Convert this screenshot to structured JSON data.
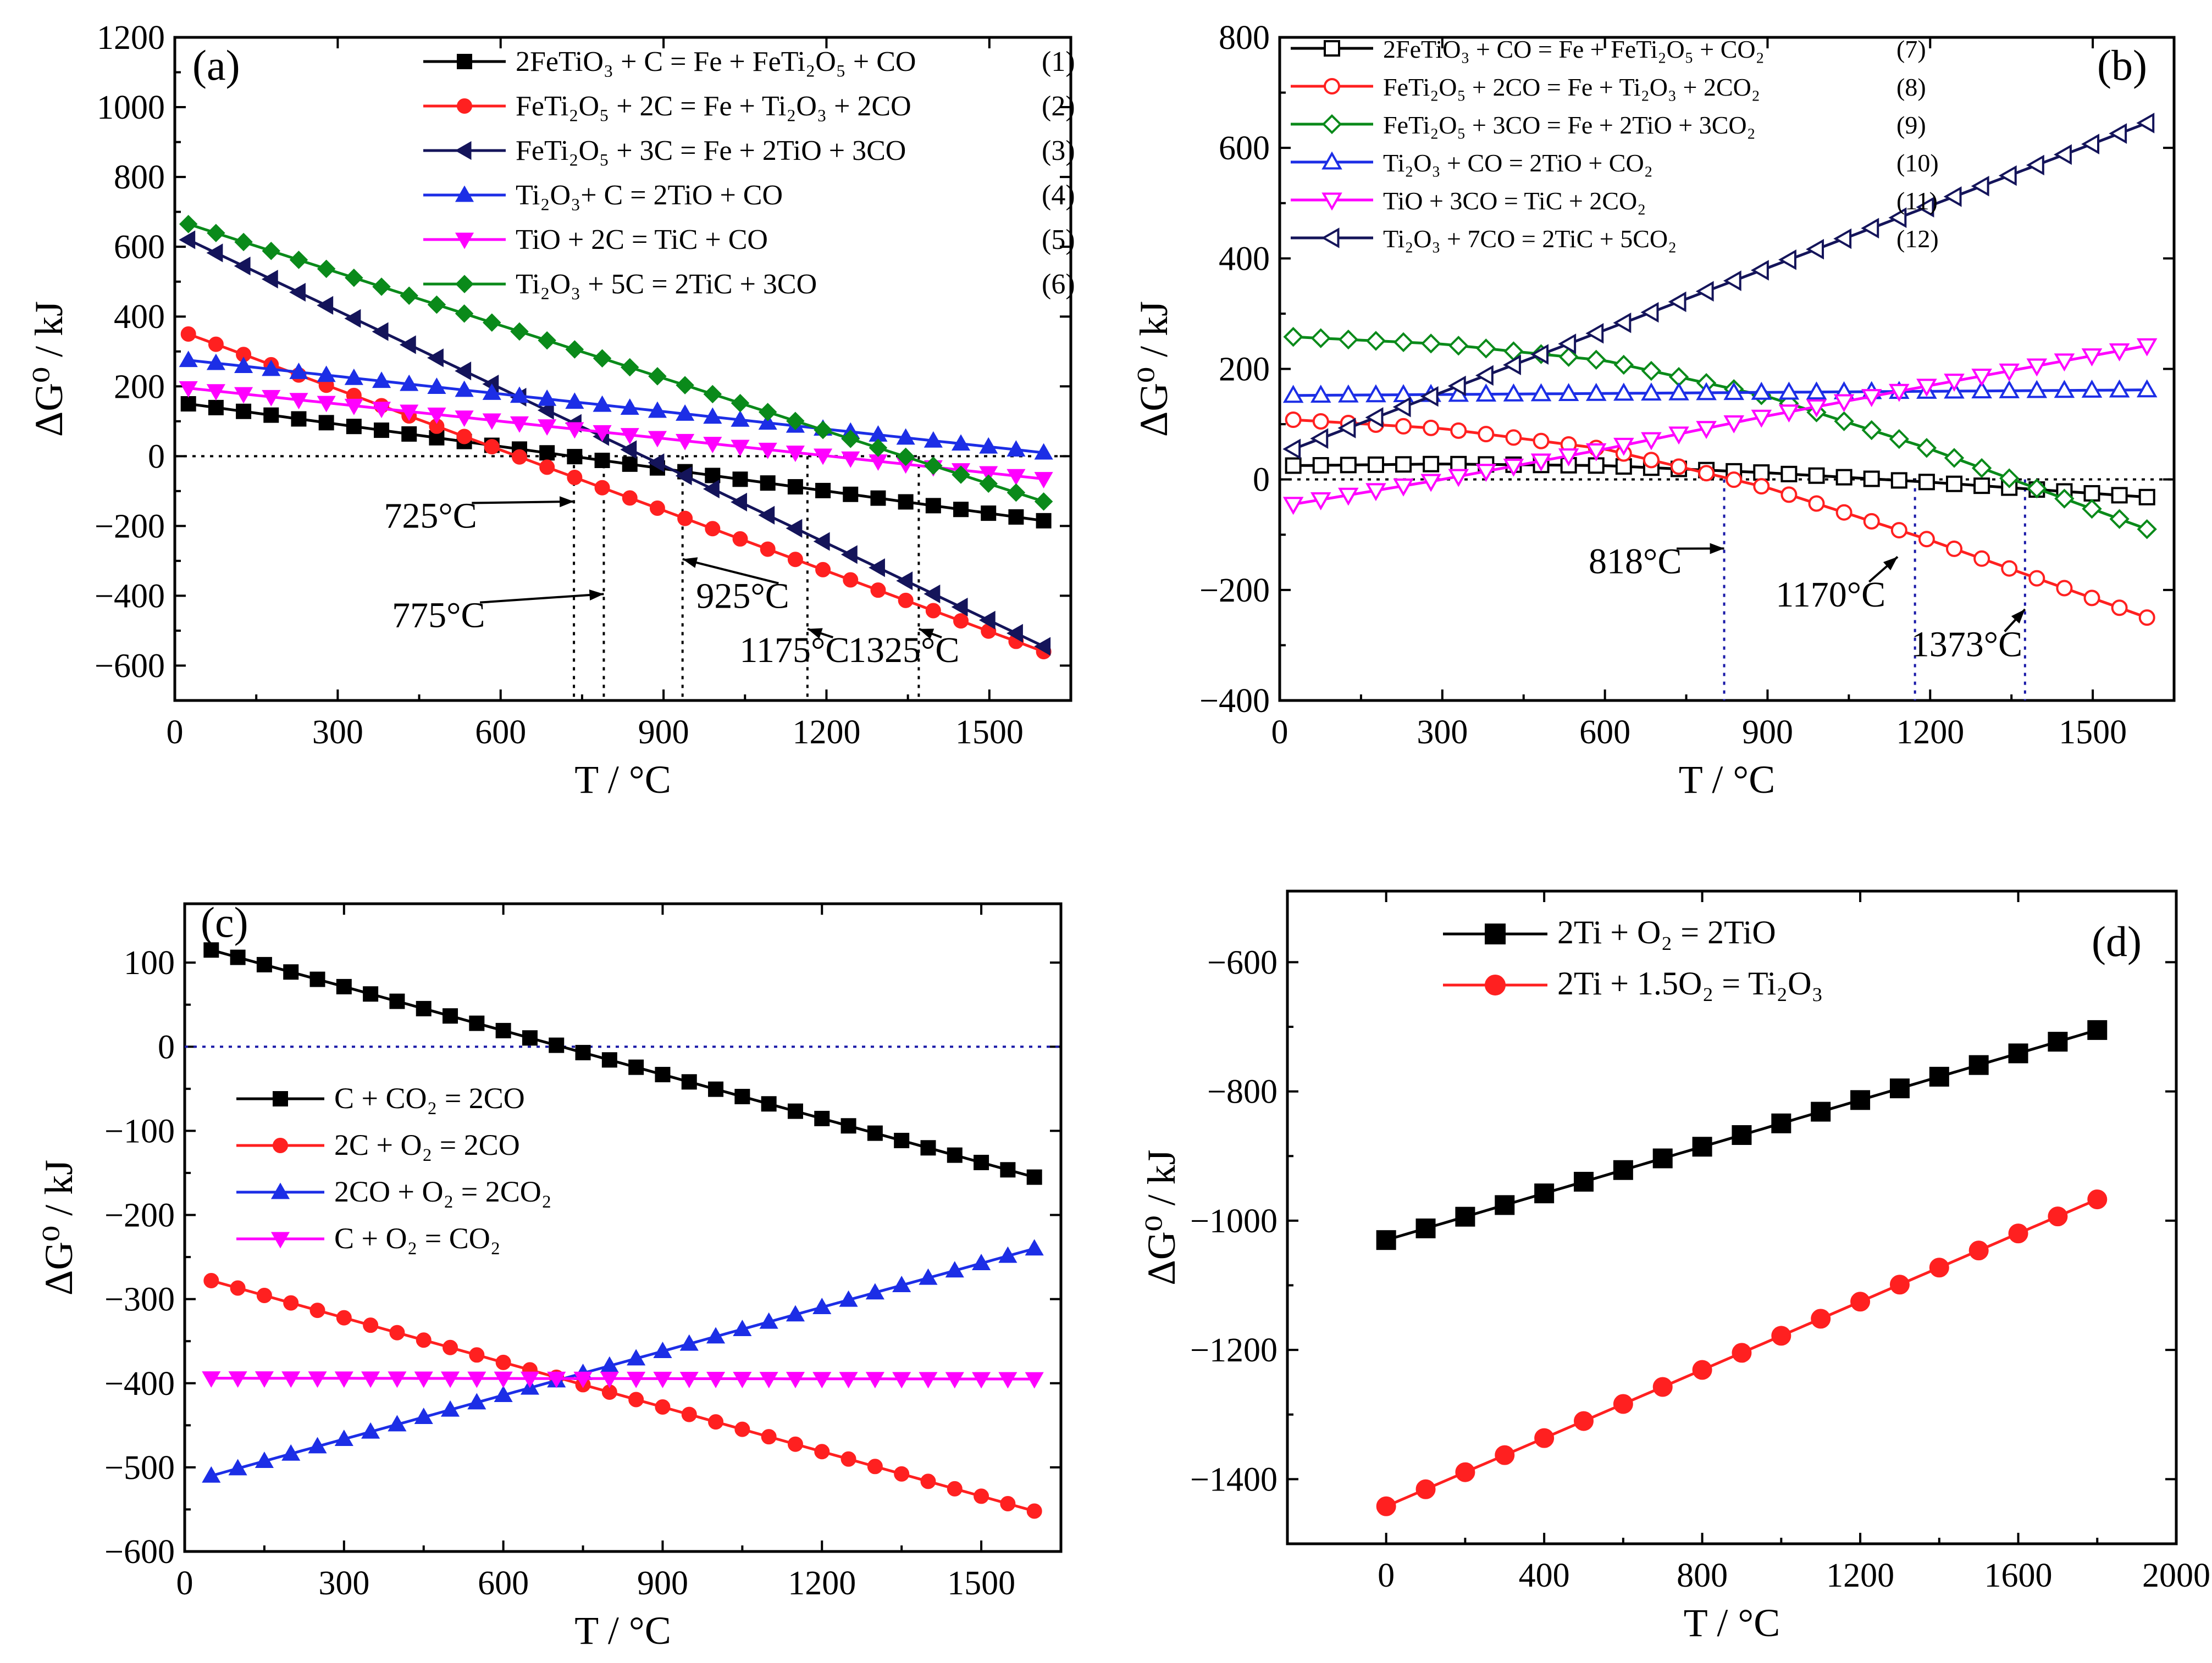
{
  "chart_data": [
    {
      "id": "a",
      "type": "line",
      "panel_label": "(a)",
      "xlabel": "T / °C",
      "ylabel": "ΔG⁰ / kJ",
      "xlim": [
        0,
        1650
      ],
      "ylim": [
        -700,
        1200
      ],
      "xticks": [
        0,
        300,
        600,
        900,
        1200,
        1500
      ],
      "yticks": [
        -600,
        -400,
        -200,
        0,
        200,
        400,
        600,
        800,
        1000,
        1200
      ],
      "zero_line": true,
      "legend_position": "top-right",
      "series": [
        {
          "name": "2FeTiO₃ + C = Fe + FeTi₂O₅ + CO",
          "number": "(1)",
          "color": "#000000",
          "marker": "square",
          "filled": true,
          "x": [
            25,
            1600
          ],
          "y": [
            150,
            -185
          ]
        },
        {
          "name": "FeTi₂O₅ + 2C = Fe + Ti₂O₃ + 2CO",
          "number": "(2)",
          "color": "#ff2020",
          "marker": "circle",
          "filled": true,
          "x": [
            25,
            1600
          ],
          "y": [
            350,
            -560
          ]
        },
        {
          "name": "FeTi₂O₅ + 3C = Fe + 2TiO + 3CO",
          "number": "(3)",
          "color": "#14145a",
          "marker": "triangle-left",
          "filled": true,
          "x": [
            25,
            1600
          ],
          "y": [
            620,
            -545
          ]
        },
        {
          "name": "Ti₂O₃+ C = 2TiO + CO",
          "number": "(4)",
          "color": "#1c2ee6",
          "marker": "triangle-up",
          "filled": true,
          "x": [
            25,
            1600
          ],
          "y": [
            275,
            10
          ]
        },
        {
          "name": "TiO + 2C = TiC + CO",
          "number": "(5)",
          "color": "#ff00ff",
          "marker": "triangle-down",
          "filled": true,
          "x": [
            25,
            1600
          ],
          "y": [
            195,
            -65
          ]
        },
        {
          "name": "Ti₂O₃ + 5C = 2TiC + 3CO",
          "number": "(6)",
          "color": "#0a8a1a",
          "marker": "diamond",
          "filled": true,
          "x": [
            25,
            1600
          ],
          "y": [
            665,
            -130
          ]
        }
      ],
      "vlines": [
        735,
        790,
        935,
        1165,
        1370
      ],
      "annotations": [
        {
          "text": "725°C",
          "x": 385,
          "y": -205,
          "ax": 735,
          "ay": -130
        },
        {
          "text": "775°C",
          "x": 400,
          "y": -490,
          "ax": 790,
          "ay": -395
        },
        {
          "text": "925°C",
          "x": 960,
          "y": -435,
          "ax": 935,
          "ay": -295
        },
        {
          "text": "1175°C",
          "x": 1040,
          "y": -590,
          "ax": 1165,
          "ay": -495
        },
        {
          "text": "1325°C",
          "x": 1240,
          "y": -590,
          "ax": 1370,
          "ay": -495
        }
      ]
    },
    {
      "id": "b",
      "type": "line",
      "panel_label": "(b)",
      "xlabel": "T / °C",
      "ylabel": "ΔG⁰ / kJ",
      "xlim": [
        0,
        1650
      ],
      "ylim": [
        -400,
        800
      ],
      "xticks": [
        0,
        300,
        600,
        900,
        1200,
        1500
      ],
      "yticks": [
        -400,
        -200,
        0,
        200,
        400,
        600,
        800
      ],
      "zero_line": true,
      "legend_position": "top-left",
      "series": [
        {
          "name": "2FeTiO₃ + CO = Fe + FeTi₂O₅ + CO₂",
          "number": "(7)",
          "color": "#000000",
          "marker": "square",
          "filled": false,
          "x": [
            25,
            300,
            600,
            900,
            1200,
            1600
          ],
          "y": [
            25,
            28,
            25,
            12,
            -5,
            -32
          ]
        },
        {
          "name": "FeTi₂O₅ + 2CO = Fe + Ti₂O₃ + 2CO₂",
          "number": "(8)",
          "color": "#ff2020",
          "marker": "circle",
          "filled": false,
          "x": [
            25,
            300,
            600,
            900,
            1200,
            1600
          ],
          "y": [
            108,
            92,
            55,
            -15,
            -110,
            -250
          ]
        },
        {
          "name": "FeTi₂O₅ + 3CO = Fe + 2TiO + 3CO₂",
          "number": "(9)",
          "color": "#0a8a1a",
          "marker": "diamond",
          "filled": false,
          "x": [
            25,
            300,
            600,
            900,
            1200,
            1600
          ],
          "y": [
            258,
            245,
            215,
            150,
            55,
            -90
          ]
        },
        {
          "name": "Ti₂O₃ + CO = 2TiO + CO₂",
          "number": "(10)",
          "color": "#1c2ee6",
          "marker": "triangle-up",
          "filled": false,
          "x": [
            25,
            1600
          ],
          "y": [
            152,
            162
          ]
        },
        {
          "name": "TiO + 3CO = TiC + 2CO₂",
          "number": "(11)",
          "color": "#ff00ff",
          "marker": "triangle-down",
          "filled": false,
          "x": [
            25,
            300,
            600,
            900,
            1200,
            1600
          ],
          "y": [
            -45,
            0,
            55,
            115,
            170,
            242
          ]
        },
        {
          "name": "Ti₂O₃ + 7CO = 2TiC + 5CO₂",
          "number": "(12)",
          "color": "#14145a",
          "marker": "triangle-left",
          "filled": false,
          "x": [
            25,
            1600
          ],
          "y": [
            55,
            645
          ]
        }
      ],
      "vlines": [
        820,
        1172,
        1375
      ],
      "annotations": [
        {
          "text": "818°C",
          "x": 570,
          "y": -170,
          "ax": 820,
          "ay": -125
        },
        {
          "text": "1170°C",
          "x": 915,
          "y": -230,
          "ax": 1140,
          "ay": -140
        },
        {
          "text": "1373°C",
          "x": 1165,
          "y": -320,
          "ax": 1375,
          "ay": -235
        }
      ]
    },
    {
      "id": "c",
      "type": "line",
      "panel_label": "(c)",
      "xlabel": "T / °C",
      "ylabel": "ΔG⁰ / kJ",
      "xlim": [
        0,
        1650
      ],
      "ylim": [
        -600,
        170
      ],
      "xticks": [
        0,
        300,
        600,
        900,
        1200,
        1500
      ],
      "yticks": [
        -600,
        -500,
        -400,
        -300,
        -200,
        -100,
        0,
        100
      ],
      "zero_line": true,
      "legend_position": "center-left",
      "series": [
        {
          "name": "C + CO₂ = 2CO",
          "color": "#000000",
          "marker": "square",
          "filled": true,
          "x": [
            50,
            1600
          ],
          "y": [
            115,
            -155
          ]
        },
        {
          "name": "2C + O₂ = 2CO",
          "color": "#ff2020",
          "marker": "circle",
          "filled": true,
          "x": [
            50,
            1600
          ],
          "y": [
            -278,
            -552
          ]
        },
        {
          "name": "2CO + O₂ = 2CO₂",
          "color": "#1c2ee6",
          "marker": "triangle-up",
          "filled": true,
          "x": [
            50,
            1600
          ],
          "y": [
            -510,
            -240
          ]
        },
        {
          "name": "C + O₂ = CO₂",
          "color": "#ff00ff",
          "marker": "triangle-down",
          "filled": true,
          "x": [
            50,
            1600
          ],
          "y": [
            -394,
            -395
          ]
        }
      ]
    },
    {
      "id": "d",
      "type": "line",
      "panel_label": "(d)",
      "xlabel": "T / °C",
      "ylabel": "ΔG⁰ / kJ",
      "xlim": [
        -250,
        2000
      ],
      "ylim": [
        -1500,
        -490
      ],
      "xticks": [
        0,
        400,
        800,
        1200,
        1600,
        2000
      ],
      "yticks": [
        -1400,
        -1200,
        -1000,
        -800,
        -600
      ],
      "zero_line": false,
      "legend_position": "top-left",
      "series": [
        {
          "name": "2Ti + O₂ = 2TiO",
          "color": "#000000",
          "marker": "square",
          "filled": true,
          "x": [
            0,
            1800
          ],
          "y": [
            -1030,
            -705
          ]
        },
        {
          "name": "2Ti + 1.5O₂ = Ti₂O₃",
          "color": "#ff2020",
          "marker": "circle",
          "filled": true,
          "x": [
            0,
            1800
          ],
          "y": [
            -1442,
            -967
          ]
        }
      ]
    }
  ]
}
